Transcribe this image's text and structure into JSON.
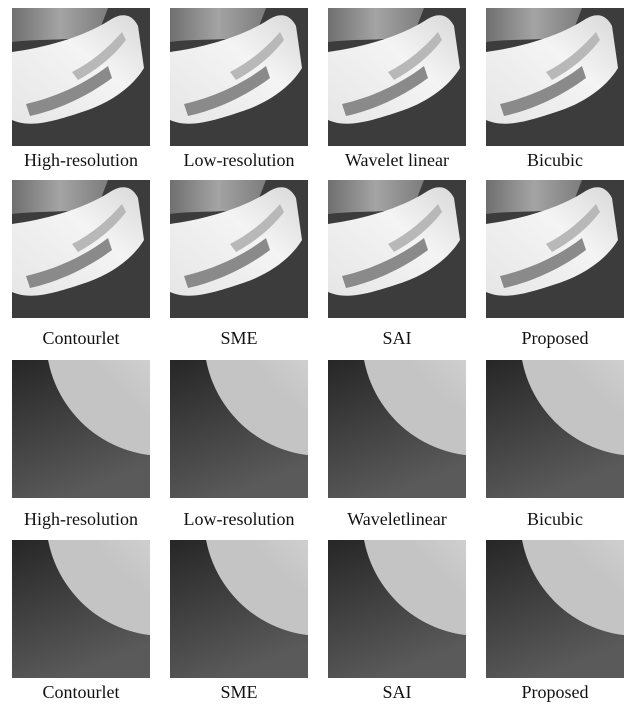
{
  "rows": [
    [
      "High-resolution",
      "Low-resolution",
      "Wavelet linear",
      "Bicubic"
    ],
    [
      "Contourlet",
      "SME",
      "SAI",
      "Proposed"
    ],
    [
      "High-resolution",
      "Low-resolution",
      "Waveletlinear",
      "Bicubic"
    ],
    [
      "Contourlet",
      "SME",
      "SAI",
      "Proposed"
    ]
  ]
}
